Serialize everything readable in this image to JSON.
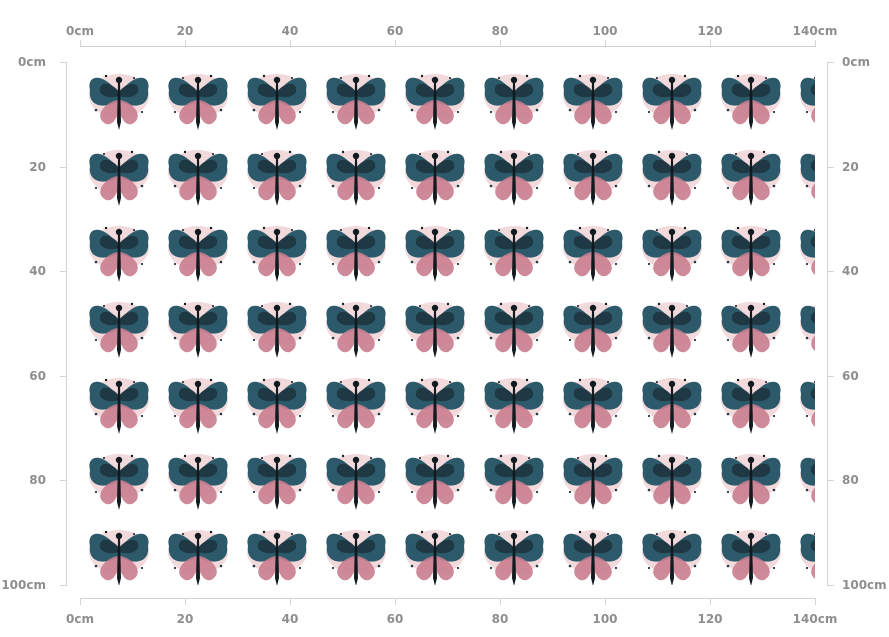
{
  "ruler": {
    "unit": "cm",
    "x_labels": [
      "0cm",
      "20",
      "40",
      "60",
      "80",
      "100",
      "120",
      "140cm"
    ],
    "y_labels": [
      "0cm",
      "20",
      "40",
      "60",
      "80",
      "100cm"
    ],
    "x_range_cm": [
      0,
      140
    ],
    "y_range_cm": [
      0,
      100
    ],
    "color": "#8e8e8e"
  },
  "fabric": {
    "pattern": "repeating watercolor ink-splash butterfly motif",
    "rows": 7,
    "columns_visible": 9.3,
    "colors": {
      "ink_dark": "#1e3844",
      "ink_teal": "#2c5a6a",
      "pink": "#c97d8f",
      "blush": "#e8b9c0",
      "background": "#ffffff"
    }
  }
}
